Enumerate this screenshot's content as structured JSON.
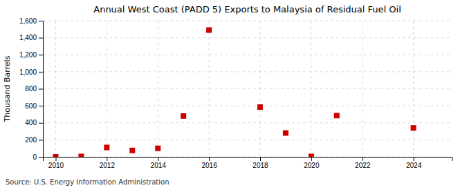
{
  "chart_data": {
    "type": "scatter",
    "title": "Annual West Coast (PADD 5) Exports to Malaysia of Residual Fuel Oil",
    "ylabel": "Thousand Barrels",
    "source": "Source: U.S. Energy Information Administration",
    "x": [
      2010,
      2011,
      2012,
      2013,
      2014,
      2015,
      2016,
      2018,
      2019,
      2020,
      2021,
      2024
    ],
    "values": [
      0,
      5,
      110,
      75,
      100,
      480,
      1490,
      585,
      280,
      5,
      485,
      340
    ],
    "color": "#cc0000",
    "marker": "square",
    "xlim": [
      2009.5,
      2025.5
    ],
    "ylim": [
      0,
      1600
    ],
    "xticks": [
      2010,
      2012,
      2014,
      2016,
      2018,
      2020,
      2022,
      2024
    ],
    "yticks": [
      0,
      200,
      400,
      600,
      800,
      {
        "value": 1000,
        "label": "1,000"
      },
      {
        "value": 1200,
        "label": "1,200"
      },
      {
        "value": 1400,
        "label": "1,400"
      },
      {
        "value": 1600,
        "label": "1,600"
      }
    ],
    "grid": true
  }
}
